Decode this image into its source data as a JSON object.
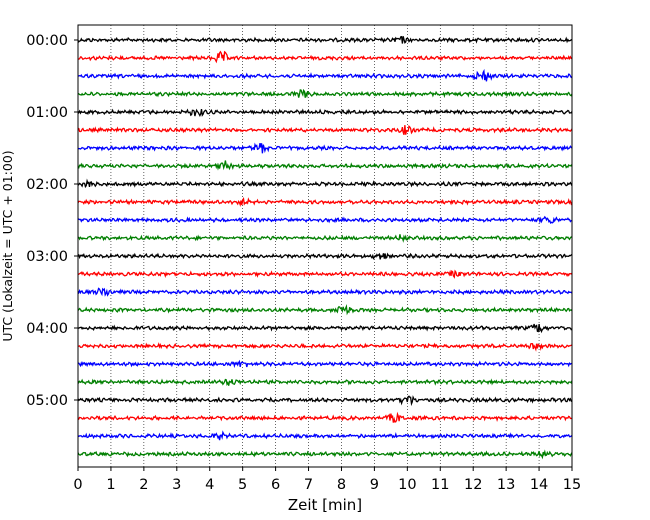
{
  "chart_data": {
    "type": "line",
    "title": "",
    "xlabel": "Zeit  [min]",
    "ylabel": "UTC (Lokalzeit = UTC + 01:00)",
    "xlim": [
      0,
      15
    ],
    "x_ticks": [
      "0",
      "1",
      "2",
      "3",
      "4",
      "5",
      "6",
      "7",
      "8",
      "9",
      "10",
      "11",
      "12",
      "13",
      "14",
      "15"
    ],
    "y_ticks": [
      "00:00",
      "01:00",
      "02:00",
      "03:00",
      "04:00",
      "05:00"
    ],
    "grid": "vertical dotted",
    "legend": "none",
    "trace_interval_min": 15,
    "trace_count": 24,
    "trace_colors": [
      "#000000",
      "#ff0000",
      "#0000ff",
      "#007f00"
    ],
    "start_time": "00:00"
  }
}
